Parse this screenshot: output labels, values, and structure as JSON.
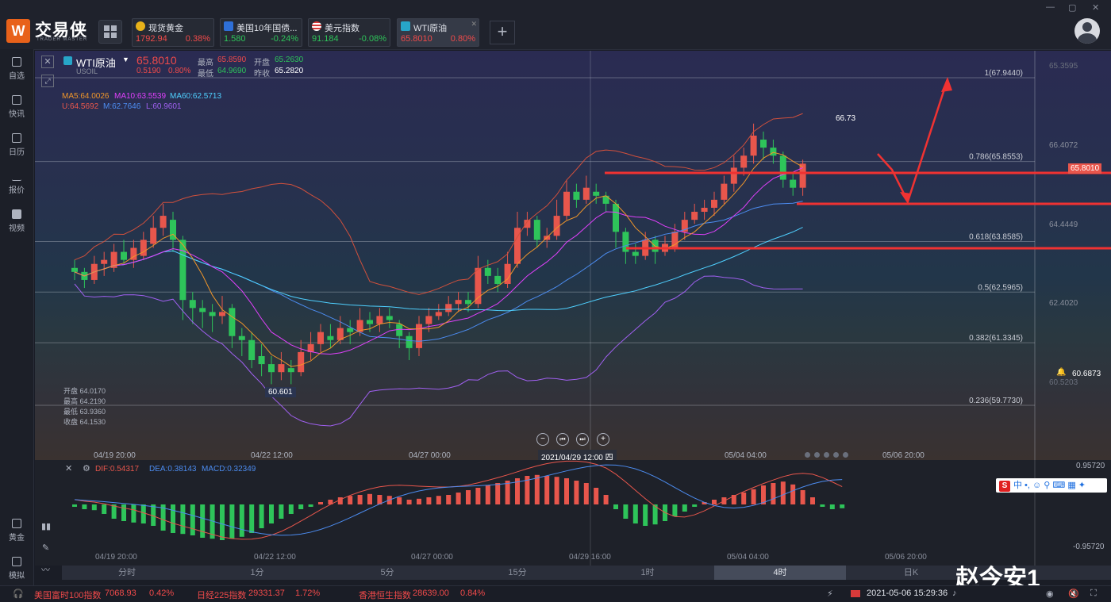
{
  "app": {
    "name": "交易侠",
    "subname": "TRADER MASTER"
  },
  "window_controls": [
    "—",
    "▢",
    "✕"
  ],
  "tabs": [
    {
      "name": "现货黄金",
      "price": "1792.94",
      "change": "0.38%",
      "icon_color": "#e8b21a"
    },
    {
      "name": "美国10年国债...",
      "price": "1.580",
      "change": "-0.24%",
      "icon_color": "#2e6fd8"
    },
    {
      "name": "美元指数",
      "price": "91.184",
      "change": "-0.08%",
      "icon_color": "#d83a3a"
    },
    {
      "name": "WTI原油",
      "price": "65.8010",
      "change": "0.80%",
      "icon_color": "#27a6c9"
    }
  ],
  "sidebar": [
    {
      "label": "自选",
      "icon": "bookmark-icon"
    },
    {
      "label": "快讯",
      "icon": "news-icon"
    },
    {
      "label": "日历",
      "icon": "calendar-icon"
    },
    {
      "label": "报价",
      "icon": "chart-line-icon"
    },
    {
      "label": "视频",
      "icon": "video-icon"
    },
    {
      "label": "黄金",
      "icon": "gold-icon"
    },
    {
      "label": "模拟",
      "icon": "wallet-icon"
    }
  ],
  "instrument": {
    "name": "WTI原油",
    "code": "USOIL",
    "price": "65.8010",
    "change": "0.5190",
    "change_pct": "0.80%",
    "high_label": "最高",
    "high": "65.8590",
    "low_label": "最低",
    "low": "64.9690",
    "open_label": "开盘",
    "open": "65.2630",
    "prev_label": "昨收",
    "prev": "65.2820"
  },
  "indicators": {
    "ma5": "MA5:64.0026",
    "ma10": "MA10:63.5539",
    "ma60": "MA60:62.5713",
    "u": "U:64.5692",
    "m": "M:62.7646",
    "l": "L:60.9601"
  },
  "ohlc_box": {
    "open_label": "开盘",
    "open": "64.0170",
    "high_label": "最高",
    "high": "64.2190",
    "low_label": "最低",
    "low": "63.9360",
    "close_label": "收盘",
    "close": "64.1530"
  },
  "price_axis": [
    "65.3595",
    "66.4072",
    "64.4449",
    "62.4020",
    "60.6873",
    "60.5203"
  ],
  "current_price_tag": "65.8010",
  "fib_levels": [
    {
      "label": "1(67.9440)",
      "price": 67.944
    },
    {
      "label": "0.786(65.8553)",
      "price": 65.8553
    },
    {
      "label": "0.618(63.8585)",
      "price": 63.8585
    },
    {
      "label": "0.5(62.5965)",
      "price": 62.5965
    },
    {
      "label": "0.382(61.3345)",
      "price": 61.3345
    },
    {
      "label": "0.236(59.7730)",
      "price": 59.773
    }
  ],
  "annotations": {
    "high_mark": "66.73",
    "low_mark": "60.601",
    "hover_time": "2021/04/29 12:00 四"
  },
  "time_axis": [
    "04/19 20:00",
    "04/22 12:00",
    "04/27 00:00",
    "05/04 04:00",
    "05/06 20:00"
  ],
  "macd": {
    "dif": "DIF:0.54317",
    "dea": "DEA:0.38143",
    "macd": "MACD:0.32349",
    "axis_top": "0.95720",
    "axis_bottom": "-0.95720",
    "time_axis": [
      "04/19 20:00",
      "04/22 12:00",
      "04/27 00:00",
      "04/29 16:00",
      "05/04 04:00",
      "05/06 20:00"
    ],
    "hist": [
      -0.05,
      -0.1,
      -0.12,
      -0.2,
      -0.3,
      -0.35,
      -0.38,
      -0.4,
      -0.45,
      -0.55,
      -0.6,
      -0.62,
      -0.65,
      -0.7,
      -0.72,
      -0.75,
      -0.72,
      -0.68,
      -0.6,
      -0.5,
      -0.4,
      -0.3,
      -0.2,
      -0.1,
      -0.05,
      0.05,
      0.1,
      0.15,
      0.18,
      0.2,
      0.22,
      0.2,
      0.18,
      0.15,
      0.1,
      0.12,
      0.15,
      0.18,
      0.2,
      0.25,
      0.3,
      0.35,
      0.4,
      0.45,
      0.5,
      0.55,
      0.6,
      0.62,
      0.6,
      0.58,
      0.55,
      0.5,
      0.45,
      0.35,
      0.2,
      -0.1,
      -0.3,
      -0.4,
      -0.45,
      -0.42,
      -0.35,
      -0.25,
      -0.15,
      -0.05,
      0.05,
      0.1,
      0.15,
      0.2,
      0.25,
      0.32,
      0.4,
      0.45,
      0.48,
      0.42,
      0.3,
      0.15,
      -0.05,
      -0.1,
      -0.08
    ]
  },
  "timeframes": [
    "分时",
    "1分",
    "5分",
    "15分",
    "1时",
    "4时",
    "日K"
  ],
  "active_timeframe": "4时",
  "status": {
    "items": [
      {
        "name": "美国富时100指数",
        "value": "7068.93",
        "pct": "0.42%"
      },
      {
        "name": "日经225指数",
        "value": "29331.37",
        "pct": "1.72%"
      },
      {
        "name": "香港恒生指数",
        "value": "28639.00",
        "pct": "0.84%"
      }
    ],
    "datetime": "2021-05-06 15:29:36"
  },
  "ime": {
    "badge": "S",
    "text": "中 •, ☺ ⚲ ⌨ ▦ ✦"
  },
  "watermark": "赵今安1",
  "candles": [
    [
      63.2,
      63.1,
      63.4,
      62.9
    ],
    [
      63.1,
      62.9,
      63.2,
      62.7
    ],
    [
      62.9,
      63.3,
      63.5,
      62.8
    ],
    [
      63.3,
      63.4,
      63.6,
      63.0
    ],
    [
      63.2,
      63.6,
      63.8,
      63.1
    ],
    [
      63.6,
      63.4,
      63.9,
      63.3
    ],
    [
      63.4,
      63.7,
      63.9,
      63.2
    ],
    [
      63.5,
      63.9,
      64.1,
      63.4
    ],
    [
      63.8,
      64.2,
      64.5,
      63.7
    ],
    [
      64.2,
      64.5,
      64.8,
      64.0
    ],
    [
      64.4,
      63.9,
      64.6,
      63.6
    ],
    [
      63.9,
      62.4,
      64.0,
      61.9
    ],
    [
      62.4,
      62.2,
      62.6,
      61.8
    ],
    [
      62.2,
      62.1,
      62.4,
      61.7
    ],
    [
      62.1,
      62.0,
      62.3,
      61.6
    ],
    [
      62.0,
      62.1,
      62.5,
      61.8
    ],
    [
      62.2,
      61.5,
      62.3,
      61.2
    ],
    [
      61.5,
      61.4,
      61.7,
      61.0
    ],
    [
      61.4,
      60.9,
      61.6,
      60.7
    ],
    [
      61.0,
      60.8,
      61.3,
      60.5
    ],
    [
      60.8,
      60.6,
      61.0,
      60.3
    ],
    [
      60.6,
      60.8,
      61.1,
      60.4
    ],
    [
      60.7,
      60.6,
      60.9,
      60.3
    ],
    [
      60.6,
      61.1,
      61.4,
      60.5
    ],
    [
      61.1,
      61.3,
      61.6,
      60.9
    ],
    [
      61.3,
      61.6,
      61.8,
      61.1
    ],
    [
      61.5,
      61.4,
      61.8,
      61.2
    ],
    [
      61.4,
      61.7,
      62.0,
      61.3
    ],
    [
      61.7,
      61.6,
      61.9,
      61.3
    ],
    [
      61.6,
      61.9,
      62.2,
      61.5
    ],
    [
      61.9,
      61.8,
      62.1,
      61.6
    ],
    [
      61.8,
      62.0,
      62.2,
      61.6
    ],
    [
      62.0,
      61.9,
      62.2,
      61.7
    ],
    [
      61.8,
      61.5,
      61.9,
      61.2
    ],
    [
      61.5,
      61.2,
      61.6,
      60.9
    ],
    [
      61.2,
      61.8,
      62.0,
      61.0
    ],
    [
      61.8,
      62.0,
      62.2,
      61.6
    ],
    [
      62.0,
      62.1,
      62.3,
      61.9
    ],
    [
      62.1,
      62.3,
      62.5,
      62.0
    ],
    [
      62.3,
      62.4,
      62.6,
      62.1
    ],
    [
      62.4,
      62.3,
      62.6,
      62.1
    ],
    [
      62.3,
      63.2,
      63.5,
      62.2
    ],
    [
      63.2,
      63.0,
      63.4,
      62.8
    ],
    [
      63.0,
      62.8,
      63.2,
      62.6
    ],
    [
      62.8,
      63.3,
      63.6,
      62.7
    ],
    [
      63.3,
      64.2,
      64.6,
      63.2
    ],
    [
      64.2,
      64.4,
      64.6,
      64.0
    ],
    [
      64.4,
      63.9,
      64.5,
      63.7
    ],
    [
      63.9,
      64.0,
      64.2,
      63.7
    ],
    [
      64.0,
      64.5,
      64.9,
      63.9
    ],
    [
      64.5,
      65.1,
      65.4,
      64.4
    ],
    [
      65.1,
      64.9,
      65.3,
      64.7
    ],
    [
      64.9,
      65.2,
      65.5,
      64.8
    ],
    [
      65.1,
      65.0,
      65.3,
      64.8
    ],
    [
      65.0,
      64.8,
      65.1,
      64.6
    ],
    [
      64.8,
      64.1,
      64.9,
      63.7
    ],
    [
      64.1,
      63.6,
      64.2,
      63.3
    ],
    [
      63.6,
      63.5,
      63.8,
      63.3
    ],
    [
      63.5,
      63.9,
      64.1,
      63.4
    ],
    [
      63.9,
      63.6,
      64.0,
      63.3
    ],
    [
      63.6,
      63.8,
      64.0,
      63.5
    ],
    [
      63.7,
      64.1,
      64.3,
      63.6
    ],
    [
      64.1,
      64.4,
      64.6,
      63.9
    ],
    [
      64.4,
      64.6,
      64.8,
      64.3
    ],
    [
      64.6,
      64.7,
      64.9,
      64.4
    ],
    [
      64.7,
      64.9,
      65.1,
      64.5
    ],
    [
      64.9,
      65.3,
      65.5,
      64.8
    ],
    [
      65.3,
      65.7,
      66.0,
      65.1
    ],
    [
      65.7,
      66.0,
      66.2,
      65.5
    ],
    [
      66.0,
      66.5,
      66.8,
      65.8
    ],
    [
      66.4,
      66.2,
      66.6,
      65.9
    ],
    [
      66.2,
      66.0,
      66.4,
      65.8
    ],
    [
      66.0,
      65.4,
      66.1,
      65.2
    ],
    [
      65.4,
      65.2,
      65.6,
      65.0
    ],
    [
      65.2,
      65.8,
      65.9,
      65.0
    ]
  ],
  "colors": {
    "up": "#e8564c",
    "down": "#2ec45a",
    "arrow": "#f03232"
  }
}
